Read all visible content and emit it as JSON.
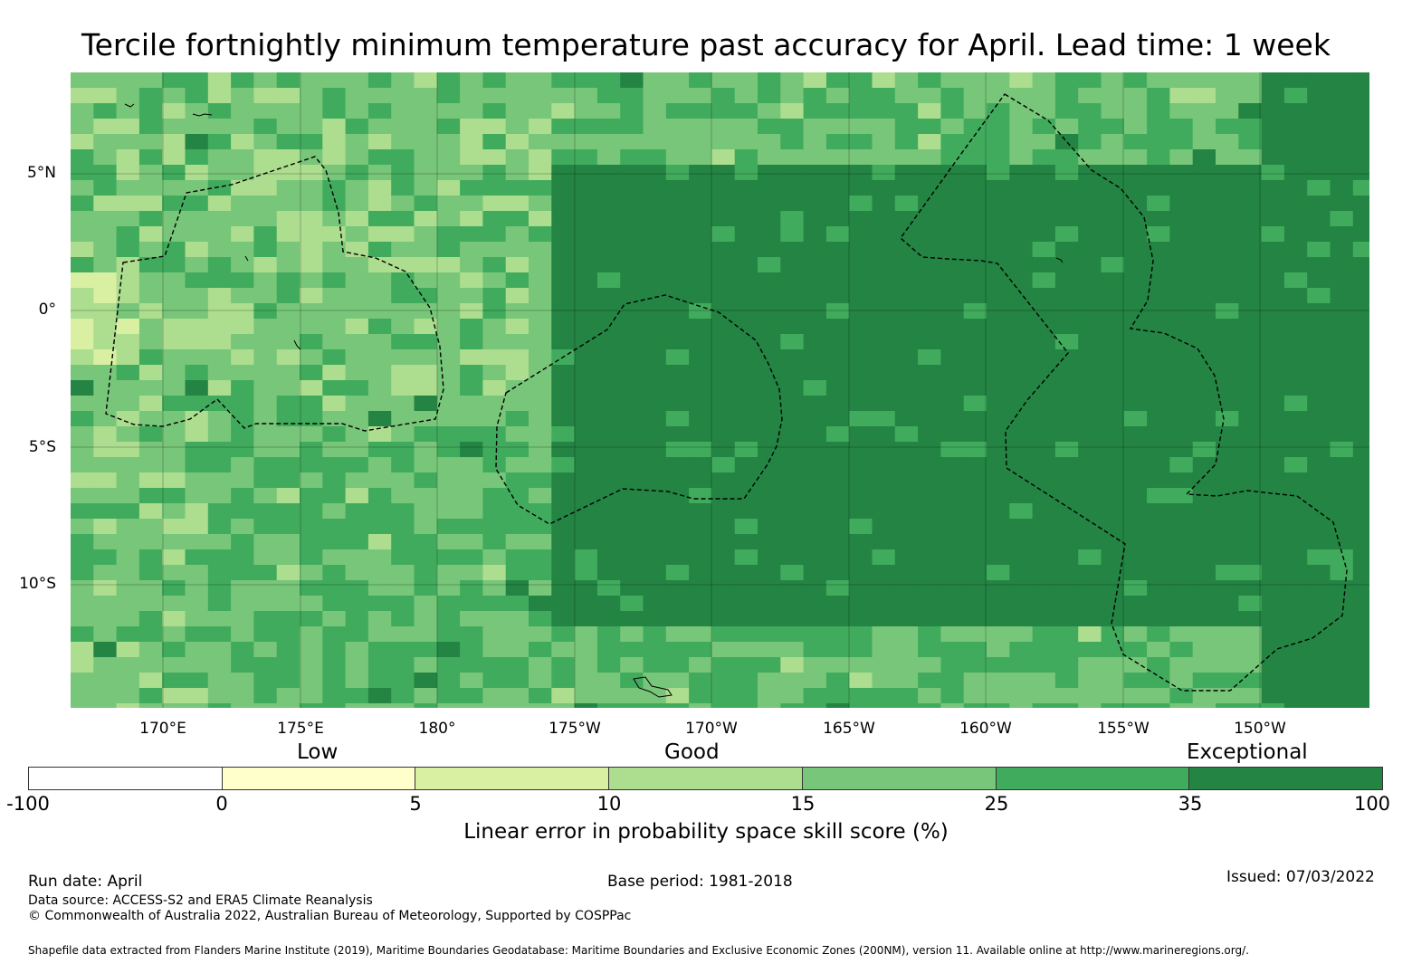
{
  "title": "Tercile fortnightly minimum temperature past accuracy for April. Lead time: 1 week",
  "map": {
    "lat_labels": [
      "5°N",
      "0°",
      "5°S",
      "10°S"
    ],
    "lon_labels": [
      "170°E",
      "175°E",
      "180°",
      "175°W",
      "170°W",
      "165°W",
      "160°W",
      "155°W",
      "150°W"
    ]
  },
  "qualitative_labels": [
    "Low",
    "Good",
    "Exceptional"
  ],
  "colorbar": {
    "ticks": [
      "-100",
      "0",
      "5",
      "10",
      "15",
      "25",
      "35",
      "100"
    ],
    "colors": [
      "#ffffff",
      "#ffffcc",
      "#d9f0a3",
      "#addd8e",
      "#78c679",
      "#41ab5d",
      "#238443"
    ],
    "label": "Linear error in probability space skill score (%)"
  },
  "footer": {
    "run_date": "Run date: April",
    "base_period": "Base period: 1981-2018",
    "issued": "Issued: 07/03/2022",
    "data_source": "Data source: ACCESS-S2 and ERA5 Climate Reanalysis",
    "copyright": "© Commonwealth of Australia 2022, Australian Bureau of Meteorology, Supported by COSPPac",
    "shapefile": "Shapefile data extracted from Flanders Marine Institute (2019), Maritime Boundaries Geodatabase: Maritime Boundaries and Exclusive Economic Zones (200NM), version 11. Available online at http://www.marineregions.org/."
  }
}
